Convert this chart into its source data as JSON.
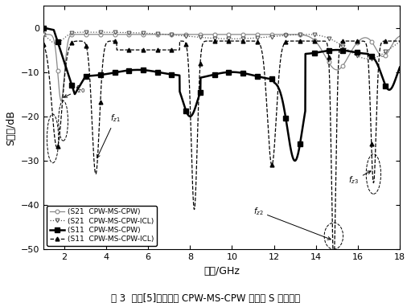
{
  "xlabel": "频率/GHz",
  "ylabel": "S参数/dB",
  "xlim": [
    1,
    18
  ],
  "ylim": [
    -50,
    5
  ],
  "yticks": [
    0,
    -10,
    -20,
    -30,
    -40,
    -50
  ],
  "xticks": [
    2,
    4,
    6,
    8,
    10,
    12,
    14,
    16,
    18
  ],
  "caption": "图 3  文献[5]和本文的 CPW-MS-CPW 的仿真 S 参数对比",
  "legend_entries": [
    "(S11  CPW-MS-CPW)",
    "(S21  CPW-MS-CPW)",
    "(S11  CPW-MS-CPW-ICL)",
    "(S21  CPW-MS-CPW-ICL)"
  ]
}
